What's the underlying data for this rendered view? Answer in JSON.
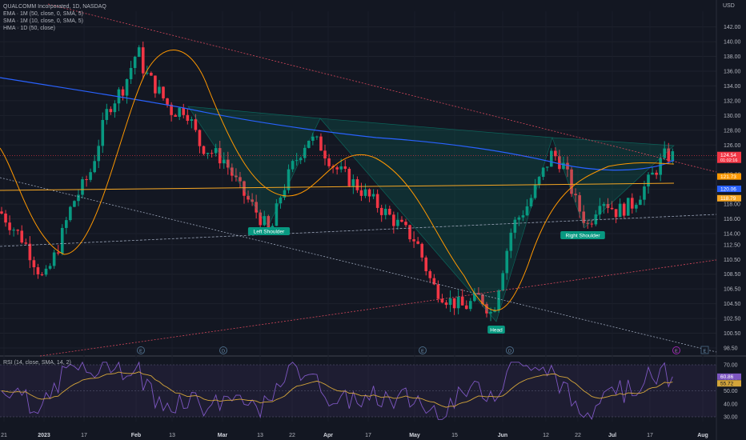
{
  "header": {
    "symbol_line": "QUALCOMM Incorporated, 1D, NASDAQ",
    "indicators": [
      "EMA · 1M (50, close, 0, SMA, 5)",
      "SMA · 1M (10, close, 0, SMA, 5)",
      "HMA · 1D (50, close)"
    ],
    "currency": "USD",
    "rsi_title": "RSI (14, close, SMA, 14, 2)"
  },
  "colors": {
    "background": "#131722",
    "up": "#089981",
    "down": "#f23645",
    "hma": "#2962ff",
    "ema": "#ff9800",
    "sma": "#f5a623",
    "rsi": "#7e57c2",
    "rsi_ma": "#d4a53a"
  },
  "chart_data": {
    "type": "candlestick",
    "y_range": [
      98.5,
      142.5
    ],
    "y_ticks": [
      "142.00",
      "140.00",
      "138.00",
      "136.00",
      "134.00",
      "132.00",
      "130.00",
      "128.00",
      "126.00",
      "124.00",
      "122.00",
      "120.00",
      "118.00",
      "116.00",
      "114.00",
      "112.50",
      "110.50",
      "108.50",
      "106.50",
      "104.50",
      "102.50",
      "100.50",
      "98.50"
    ],
    "x_ticks": [
      "21",
      "2023",
      "17",
      "Feb",
      "13",
      "Mar",
      "13",
      "22",
      "Apr",
      "17",
      "May",
      "15",
      "Jun",
      "12",
      "22",
      "Jul",
      "17",
      "Aug"
    ],
    "candles": [],
    "price_labels": [
      {
        "text": "124.54",
        "sub": "01:02:16",
        "value": 124.54,
        "color": "#f23645"
      },
      {
        "text": "121.73",
        "value": 121.73,
        "color": "#ff9800"
      },
      {
        "text": "120.06",
        "value": 120.06,
        "color": "#2962ff"
      },
      {
        "text": "118.79",
        "value": 118.79,
        "color": "#f5a623"
      }
    ],
    "patterns": [
      {
        "label": "Left Shoulder"
      },
      {
        "label": "Head"
      },
      {
        "label": "Right Shoulder"
      }
    ],
    "event_markers": [
      "E",
      "D",
      "E",
      "D",
      "E"
    ],
    "rsi": {
      "y_range": [
        30,
        70
      ],
      "y_ticks": [
        "70.00",
        "60.00",
        "50.00",
        "40.00",
        "30.00"
      ],
      "rsi_label": "60.86",
      "ma_label": "55.72",
      "rsi_value": 60.86,
      "ma_value": 55.72
    }
  }
}
